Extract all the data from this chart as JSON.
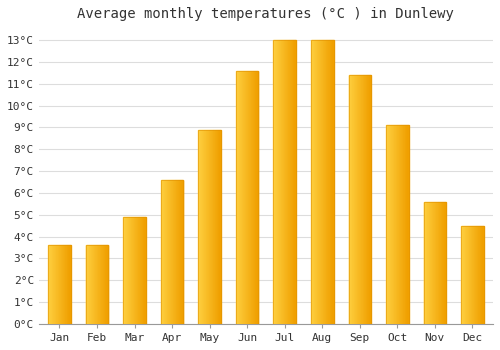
{
  "title": "Average monthly temperatures (°C ) in Dunlewy",
  "months": [
    "Jan",
    "Feb",
    "Mar",
    "Apr",
    "May",
    "Jun",
    "Jul",
    "Aug",
    "Sep",
    "Oct",
    "Nov",
    "Dec"
  ],
  "values": [
    3.6,
    3.6,
    4.9,
    6.6,
    8.9,
    11.6,
    13.0,
    13.0,
    11.4,
    9.1,
    5.6,
    4.5
  ],
  "bar_color_left": "#FFD040",
  "bar_color_right": "#F0A000",
  "background_color": "#FFFFFF",
  "grid_color": "#DDDDDD",
  "ylim": [
    0,
    13.5
  ],
  "yticks": [
    0,
    1,
    2,
    3,
    4,
    5,
    6,
    7,
    8,
    9,
    10,
    11,
    12,
    13
  ],
  "ylabel_suffix": "°C",
  "title_fontsize": 10,
  "tick_fontsize": 8,
  "font_family": "monospace"
}
